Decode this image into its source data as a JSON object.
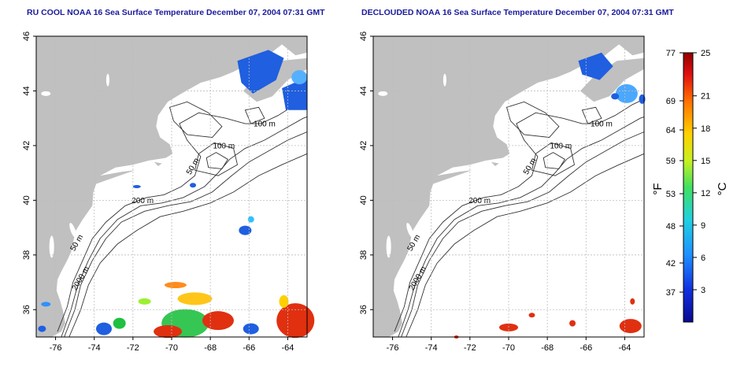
{
  "panels": [
    {
      "title": "RU COOL NOAA 16 Sea Surface Temperature December 07, 2004 07:31 GMT",
      "contour_labels": [
        "100 m",
        "100 m",
        "50 m",
        "200 m",
        "50 m",
        "2000 m"
      ]
    },
    {
      "title": "DECLOUDED NOAA 16 Sea Surface Temperature December 07, 2004 07:31 GMT",
      "contour_labels": [
        "100 m",
        "100 m",
        "50 m",
        "200 m",
        "50 m",
        "2000 m"
      ]
    }
  ],
  "colorbar": {
    "fahrenheit_ticks": [
      "77",
      "69",
      "64",
      "59",
      "53",
      "48",
      "42",
      "37"
    ],
    "celsius_ticks": [
      "25",
      "21",
      "18",
      "15",
      "12",
      "9",
      "6",
      "3"
    ],
    "fahrenheit_label": "°F",
    "celsius_label": "°C",
    "range_c": [
      0,
      25
    ]
  },
  "chart_data": [
    {
      "type": "heatmap",
      "title": "RU COOL NOAA 16 Sea Surface Temperature December 07, 2004 07:31 GMT",
      "xlim": [
        -77,
        -63
      ],
      "ylim": [
        35,
        46
      ],
      "xticks": [
        "-76",
        "-74",
        "-72",
        "-70",
        "-68",
        "-66",
        "-64"
      ],
      "yticks": [
        "36",
        "38",
        "40",
        "42",
        "44",
        "46"
      ],
      "grid": true,
      "colors": {
        "land": "#c0c0c0",
        "cold": "#1f5fe0",
        "warm": "#e03010"
      }
    },
    {
      "type": "heatmap",
      "title": "DECLOUDED NOAA 16 Sea Surface Temperature December 07, 2004 07:31 GMT",
      "xlim": [
        -77,
        -63
      ],
      "ylim": [
        35,
        46
      ],
      "xticks": [
        "-76",
        "-74",
        "-72",
        "-70",
        "-68",
        "-66",
        "-64"
      ],
      "yticks": [
        "36",
        "38",
        "40",
        "42",
        "44",
        "46"
      ],
      "grid": true,
      "colors": {
        "land": "#c0c0c0",
        "cold": "#1f5fe0",
        "warm": "#e03010"
      }
    }
  ]
}
